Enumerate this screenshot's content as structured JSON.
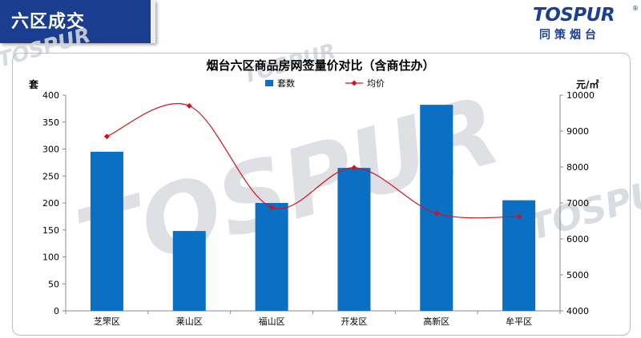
{
  "header": {
    "section_title": "六区成交"
  },
  "logo": {
    "brand": "TOSPUR",
    "reg_mark": "®",
    "brand_cn": "同策烟台"
  },
  "watermark": {
    "text": "TOSPUR"
  },
  "colors": {
    "bar": "#0b6fc4",
    "line": "#d0161d",
    "header": "#1a3d8f",
    "brand": "#1b3f95"
  },
  "chart_data": {
    "type": "bar",
    "title": "烟台六区商品房网签量价对比（含商住办）",
    "categories": [
      "芝罘区",
      "莱山区",
      "福山区",
      "开发区",
      "高新区",
      "牟平区"
    ],
    "series": [
      {
        "name": "套数",
        "type": "bar",
        "axis": "left",
        "values": [
          295,
          148,
          200,
          265,
          382,
          205
        ]
      },
      {
        "name": "均价",
        "type": "line",
        "axis": "right",
        "values": [
          8850,
          9700,
          6880,
          7980,
          6710,
          6620
        ]
      }
    ],
    "ylabel": "套",
    "ylim": [
      0,
      400
    ],
    "yticks": [
      "0",
      "50",
      "100",
      "150",
      "200",
      "250",
      "300",
      "350",
      "400"
    ],
    "y2label": "元/㎡",
    "y2lim": [
      4000,
      10000
    ],
    "y2ticks": [
      "4000",
      "5000",
      "6000",
      "7000",
      "8000",
      "9000",
      "10000"
    ],
    "legend": "top",
    "grid": false
  }
}
